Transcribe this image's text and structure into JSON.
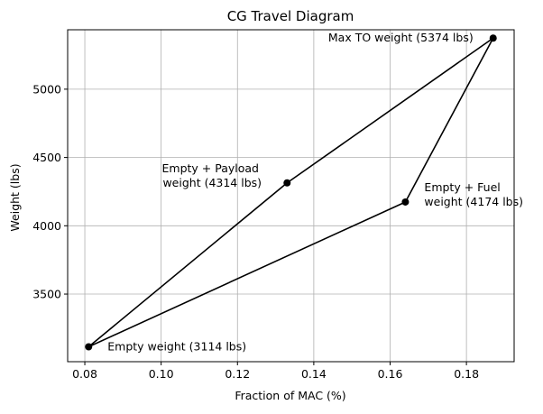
{
  "chart_data": {
    "type": "line",
    "title": "CG Travel Diagram",
    "xlabel": "Fraction of MAC (%)",
    "ylabel": "Weight (lbs)",
    "xlim": [
      0.0755,
      0.1925
    ],
    "ylim": [
      3005,
      5435
    ],
    "xticks": [
      0.08,
      0.1,
      0.12,
      0.14,
      0.16,
      0.18
    ],
    "xtick_labels": [
      "0.08",
      "0.10",
      "0.12",
      "0.14",
      "0.16",
      "0.18"
    ],
    "yticks": [
      3500,
      4000,
      4500,
      5000
    ],
    "ytick_labels": [
      "3500",
      "4000",
      "4500",
      "5000"
    ],
    "grid": true,
    "series": [
      {
        "name": "CG envelope",
        "color": "#000000",
        "marker": "circle",
        "x": [
          0.081,
          0.133,
          0.187,
          0.164,
          0.081
        ],
        "y": [
          3114,
          4314,
          5374,
          4174,
          3114
        ]
      }
    ],
    "annotations": [
      {
        "lines": [
          "Empty weight (3114 lbs)"
        ],
        "x": 0.081,
        "y": 3114
      },
      {
        "lines": [
          "Empty + Payload",
          " weight (4314 lbs)"
        ],
        "x": 0.133,
        "y": 4314
      },
      {
        "lines": [
          "Max TO weight (5374 lbs)"
        ],
        "x": 0.187,
        "y": 5374
      },
      {
        "lines": [
          "Empty + Fuel",
          "weight (4174 lbs)"
        ],
        "x": 0.164,
        "y": 4174
      }
    ]
  }
}
